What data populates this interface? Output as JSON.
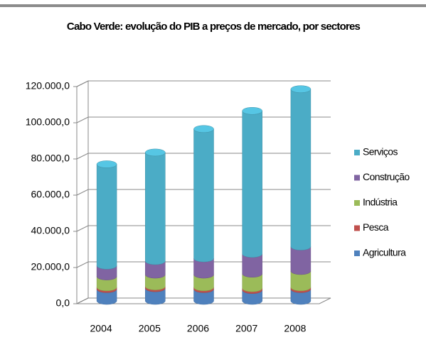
{
  "chart_data": {
    "type": "bar3d_stacked",
    "title": "Cabo Verde: evolução do PIB a preços de mercado, por sectores",
    "categories": [
      "2004",
      "2005",
      "2006",
      "2007",
      "2008"
    ],
    "series": [
      {
        "name": "Agricultura",
        "color": "#4f81bd",
        "values": [
          6500,
          7000,
          6500,
          6000,
          6500
        ]
      },
      {
        "name": "Pesca",
        "color": "#c0504d",
        "values": [
          1000,
          1000,
          1000,
          1000,
          1000
        ]
      },
      {
        "name": "Indústria",
        "color": "#9bbb59",
        "values": [
          6000,
          6500,
          7000,
          8000,
          9000
        ]
      },
      {
        "name": "Construção",
        "color": "#8064a2",
        "values": [
          6000,
          7500,
          9000,
          11000,
          13500
        ]
      },
      {
        "name": "Serviços",
        "color": "#4bacc6",
        "values": [
          56000,
          60000,
          71500,
          79000,
          87000
        ]
      }
    ],
    "ylim": [
      0,
      120000
    ],
    "yticks": [
      {
        "value": 0,
        "label": "0,0"
      },
      {
        "value": 20000,
        "label": "20.000,0"
      },
      {
        "value": 40000,
        "label": "40.000,0"
      },
      {
        "value": 60000,
        "label": "60.000,0"
      },
      {
        "value": 80000,
        "label": "80.000,0"
      },
      {
        "value": 100000,
        "label": "100.000,0"
      },
      {
        "value": 120000,
        "label": "120.000,0"
      }
    ],
    "grid": true,
    "legend": "right"
  }
}
